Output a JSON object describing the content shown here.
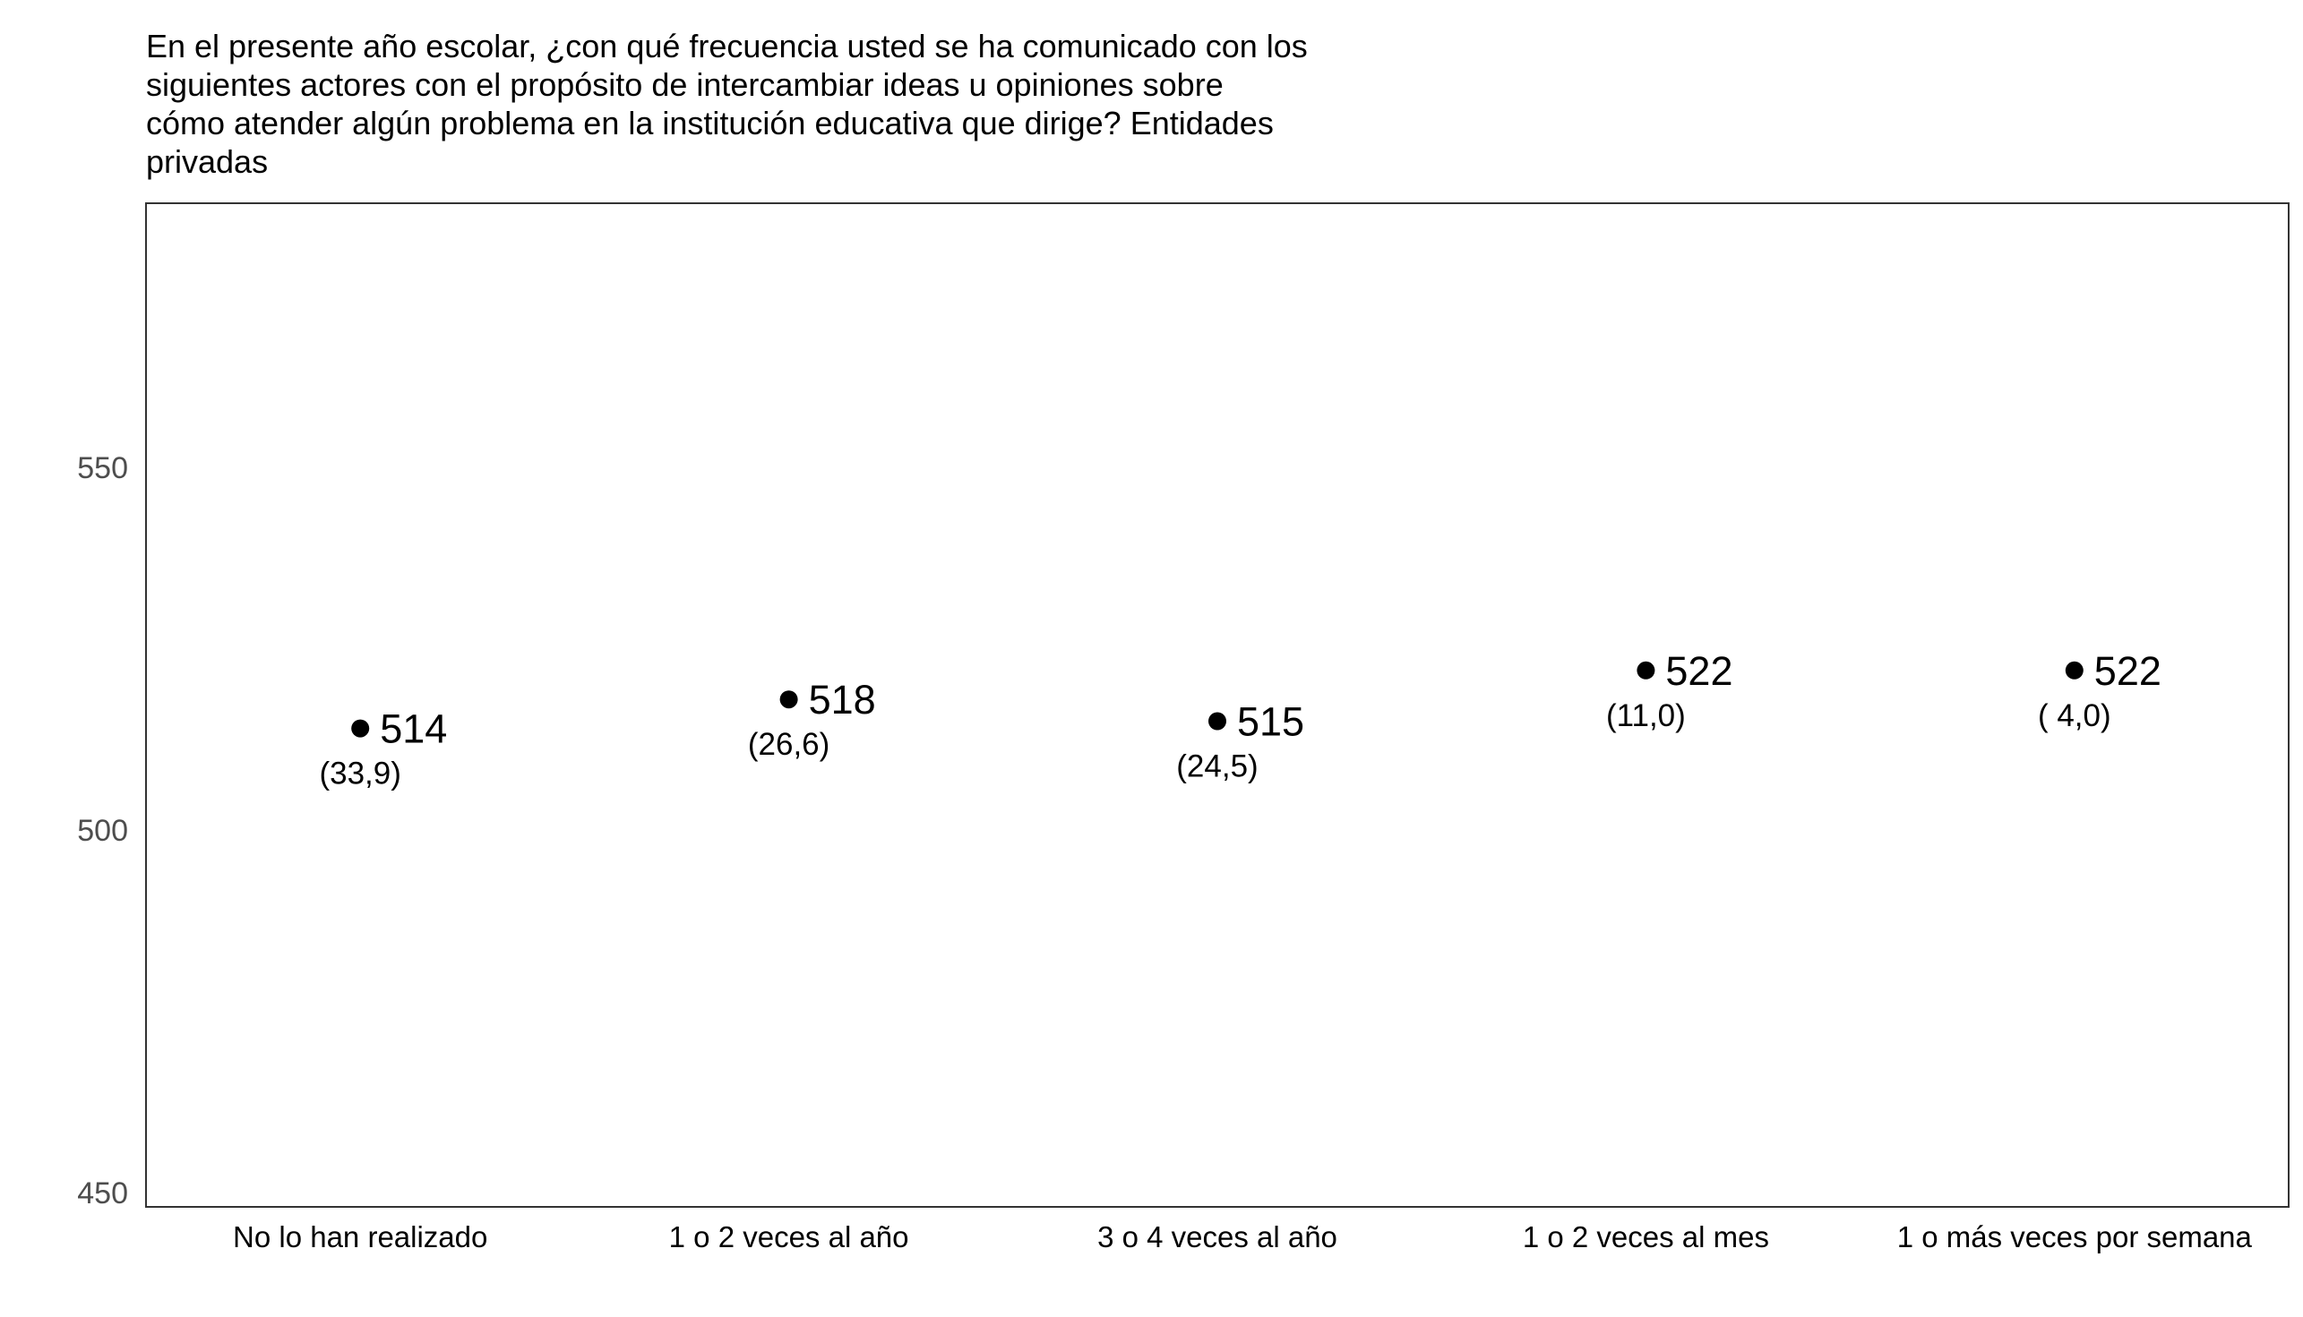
{
  "chart_data": {
    "type": "scatter",
    "title_lines": [
      "En el presente año escolar, ¿con qué frecuencia usted se ha comunicado con los",
      "siguientes actores con el propósito de intercambiar ideas u opiniones sobre",
      "cómo atender algún problema en la institución educativa que dirige? Entidades",
      "privadas"
    ],
    "categories": [
      "No lo han realizado",
      "1 o 2 veces al año",
      "3 o 4 veces al año",
      "1 o 2 veces al mes",
      "1 o más veces por semana"
    ],
    "values": [
      514,
      518,
      515,
      522,
      522
    ],
    "value_labels": [
      "514",
      "518",
      "515",
      "522",
      "522"
    ],
    "percent_labels": [
      "(33,9)",
      "(26,6)",
      "(24,5)",
      "(11,0)",
      "( 4,0)"
    ],
    "ylim": [
      450,
      588
    ],
    "yticks": [
      450,
      500,
      550
    ],
    "ytick_labels": [
      "450",
      "500",
      "550"
    ],
    "xlabel": "",
    "ylabel": "",
    "grid": false,
    "colors": {
      "point": "#000000",
      "tick_text": "#4d4d4d",
      "text": "#000000",
      "frame": "#333333"
    }
  }
}
